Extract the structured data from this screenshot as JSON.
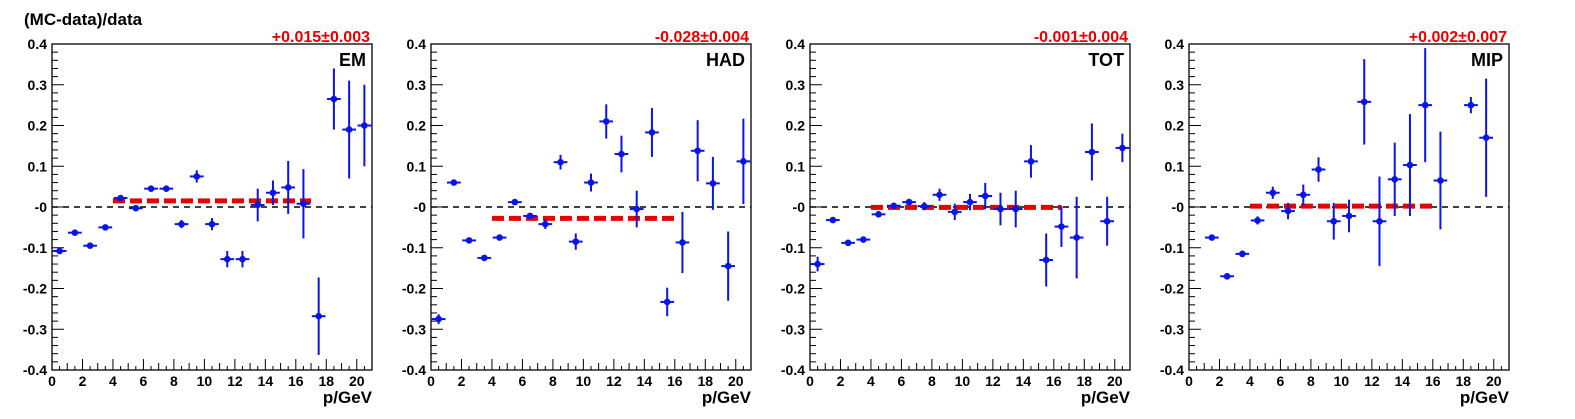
{
  "figure": {
    "ylabel": "(MC-data)/data",
    "xlabel": "p/GeV"
  },
  "colors": {
    "points": "#0a14e6",
    "fit": "#e60000",
    "zero": "#000000",
    "fit_text": "#e60000"
  },
  "chart_data": [
    {
      "type": "scatter",
      "name": "EM",
      "fit_label": "+0.015±0.003",
      "xlabel": "p/GeV",
      "ylabel": "(MC-data)/data",
      "xlim": [
        0,
        21
      ],
      "ylim": [
        -0.4,
        0.4
      ],
      "xticks": [
        0,
        2,
        4,
        6,
        8,
        10,
        12,
        14,
        16,
        18,
        20
      ],
      "yticks": [
        -0.4,
        -0.3,
        -0.2,
        -0.1,
        0,
        0.1,
        0.2,
        0.3,
        0.4
      ],
      "ytick_labels": [
        "-0.4",
        "-0.3",
        "-0.2",
        "-0.1",
        "-0",
        "0.1",
        "0.2",
        "0.3",
        "0.4"
      ],
      "fit": {
        "x1": 4,
        "x2": 17,
        "y": 0.015
      },
      "points": [
        {
          "x": 0.5,
          "y": -0.108,
          "err": 0.006
        },
        {
          "x": 1.5,
          "y": -0.063,
          "err": 0.005
        },
        {
          "x": 2.5,
          "y": -0.095,
          "err": 0.005
        },
        {
          "x": 3.5,
          "y": -0.05,
          "err": 0.004
        },
        {
          "x": 4.5,
          "y": 0.022,
          "err": 0.004
        },
        {
          "x": 5.5,
          "y": -0.003,
          "err": 0.004
        },
        {
          "x": 6.5,
          "y": 0.045,
          "err": 0.005
        },
        {
          "x": 7.5,
          "y": 0.045,
          "err": 0.007
        },
        {
          "x": 8.5,
          "y": -0.042,
          "err": 0.01
        },
        {
          "x": 9.5,
          "y": 0.075,
          "err": 0.015
        },
        {
          "x": 10.5,
          "y": -0.042,
          "err": 0.015
        },
        {
          "x": 11.5,
          "y": -0.128,
          "err": 0.02
        },
        {
          "x": 12.5,
          "y": -0.128,
          "err": 0.02
        },
        {
          "x": 13.5,
          "y": 0.005,
          "err": 0.04
        },
        {
          "x": 14.5,
          "y": 0.035,
          "err": 0.03
        },
        {
          "x": 15.5,
          "y": 0.048,
          "err": 0.065
        },
        {
          "x": 16.5,
          "y": 0.008,
          "err": 0.085
        },
        {
          "x": 17.5,
          "y": -0.268,
          "err": 0.095
        },
        {
          "x": 18.5,
          "y": 0.265,
          "err": 0.075
        },
        {
          "x": 19.5,
          "y": 0.19,
          "err": 0.12
        },
        {
          "x": 20.5,
          "y": 0.2,
          "err": 0.1
        }
      ]
    },
    {
      "type": "scatter",
      "name": "HAD",
      "fit_label": "-0.028±0.004",
      "xlabel": "p/GeV",
      "ylabel": "",
      "xlim": [
        0,
        21
      ],
      "ylim": [
        -0.4,
        0.4
      ],
      "xticks": [
        0,
        2,
        4,
        6,
        8,
        10,
        12,
        14,
        16,
        18,
        20
      ],
      "yticks": [
        -0.4,
        -0.3,
        -0.2,
        -0.1,
        0,
        0.1,
        0.2,
        0.3,
        0.4
      ],
      "ytick_labels": [
        "-0.4",
        "-0.3",
        "-0.2",
        "-0.1",
        "-0",
        "0.1",
        "0.2",
        "0.3",
        "0.4"
      ],
      "fit": {
        "x1": 4,
        "x2": 16,
        "y": -0.028
      },
      "points": [
        {
          "x": 0.5,
          "y": -0.275,
          "err": 0.012
        },
        {
          "x": 1.5,
          "y": 0.06,
          "err": 0.005
        },
        {
          "x": 2.5,
          "y": -0.082,
          "err": 0.005
        },
        {
          "x": 3.5,
          "y": -0.125,
          "err": 0.004
        },
        {
          "x": 4.5,
          "y": -0.075,
          "err": 0.004
        },
        {
          "x": 5.5,
          "y": 0.012,
          "err": 0.005
        },
        {
          "x": 6.5,
          "y": -0.022,
          "err": 0.006
        },
        {
          "x": 7.5,
          "y": -0.042,
          "err": 0.012
        },
        {
          "x": 8.5,
          "y": 0.11,
          "err": 0.018
        },
        {
          "x": 9.5,
          "y": -0.085,
          "err": 0.02
        },
        {
          "x": 10.5,
          "y": 0.06,
          "err": 0.022
        },
        {
          "x": 11.5,
          "y": 0.21,
          "err": 0.042
        },
        {
          "x": 12.5,
          "y": 0.13,
          "err": 0.045
        },
        {
          "x": 13.5,
          "y": -0.005,
          "err": 0.045
        },
        {
          "x": 14.5,
          "y": 0.183,
          "err": 0.06
        },
        {
          "x": 15.5,
          "y": -0.233,
          "err": 0.035
        },
        {
          "x": 16.5,
          "y": -0.087,
          "err": 0.075
        },
        {
          "x": 17.5,
          "y": 0.138,
          "err": 0.075
        },
        {
          "x": 18.5,
          "y": 0.058,
          "err": 0.065
        },
        {
          "x": 19.5,
          "y": -0.145,
          "err": 0.085
        },
        {
          "x": 20.5,
          "y": 0.112,
          "err": 0.105
        }
      ]
    },
    {
      "type": "scatter",
      "name": "TOT",
      "fit_label": "-0.001±0.004",
      "xlabel": "p/GeV",
      "ylabel": "",
      "xlim": [
        0,
        21
      ],
      "ylim": [
        -0.4,
        0.4
      ],
      "xticks": [
        0,
        2,
        4,
        6,
        8,
        10,
        12,
        14,
        16,
        18,
        20
      ],
      "yticks": [
        -0.4,
        -0.3,
        -0.2,
        -0.1,
        0,
        0.1,
        0.2,
        0.3,
        0.4
      ],
      "ytick_labels": [
        "-0.4",
        "-0.3",
        "-0.2",
        "-0.1",
        "-0",
        "0.1",
        "0.2",
        "0.3",
        "0.4"
      ],
      "fit": {
        "x1": 4,
        "x2": 16.5,
        "y": -0.001
      },
      "points": [
        {
          "x": 0.5,
          "y": -0.14,
          "err": 0.018
        },
        {
          "x": 1.5,
          "y": -0.032,
          "err": 0.005
        },
        {
          "x": 2.5,
          "y": -0.088,
          "err": 0.005
        },
        {
          "x": 3.5,
          "y": -0.08,
          "err": 0.005
        },
        {
          "x": 4.5,
          "y": -0.018,
          "err": 0.005
        },
        {
          "x": 5.5,
          "y": 0.003,
          "err": 0.005
        },
        {
          "x": 6.5,
          "y": 0.012,
          "err": 0.008
        },
        {
          "x": 7.5,
          "y": 0.002,
          "err": 0.01
        },
        {
          "x": 8.5,
          "y": 0.03,
          "err": 0.015
        },
        {
          "x": 9.5,
          "y": -0.012,
          "err": 0.02
        },
        {
          "x": 10.5,
          "y": 0.012,
          "err": 0.02
        },
        {
          "x": 11.5,
          "y": 0.027,
          "err": 0.032
        },
        {
          "x": 12.5,
          "y": -0.005,
          "err": 0.04
        },
        {
          "x": 13.5,
          "y": -0.005,
          "err": 0.045
        },
        {
          "x": 14.5,
          "y": 0.112,
          "err": 0.04
        },
        {
          "x": 15.5,
          "y": -0.13,
          "err": 0.065
        },
        {
          "x": 16.5,
          "y": -0.048,
          "err": 0.05
        },
        {
          "x": 17.5,
          "y": -0.075,
          "err": 0.1
        },
        {
          "x": 18.5,
          "y": 0.135,
          "err": 0.07
        },
        {
          "x": 19.5,
          "y": -0.035,
          "err": 0.06
        },
        {
          "x": 20.5,
          "y": 0.145,
          "err": 0.035
        }
      ]
    },
    {
      "type": "scatter",
      "name": "MIP",
      "fit_label": "+0.002±0.007",
      "xlabel": "p/GeV",
      "ylabel": "",
      "xlim": [
        0,
        21
      ],
      "ylim": [
        -0.4,
        0.4
      ],
      "xticks": [
        0,
        2,
        4,
        6,
        8,
        10,
        12,
        14,
        16,
        18,
        20
      ],
      "yticks": [
        -0.4,
        -0.3,
        -0.2,
        -0.1,
        0,
        0.1,
        0.2,
        0.3,
        0.4
      ],
      "ytick_labels": [
        "-0.4",
        "-0.3",
        "-0.2",
        "-0.1",
        "-0",
        "0.1",
        "0.2",
        "0.3",
        "0.4"
      ],
      "fit": {
        "x1": 4,
        "x2": 16,
        "y": 0.002
      },
      "points": [
        {
          "x": 1.5,
          "y": -0.075,
          "err": 0.006
        },
        {
          "x": 2.5,
          "y": -0.17,
          "err": 0.008
        },
        {
          "x": 3.5,
          "y": -0.115,
          "err": 0.008
        },
        {
          "x": 4.5,
          "y": -0.033,
          "err": 0.01
        },
        {
          "x": 5.5,
          "y": 0.035,
          "err": 0.015
        },
        {
          "x": 6.5,
          "y": -0.01,
          "err": 0.02
        },
        {
          "x": 7.5,
          "y": 0.03,
          "err": 0.025
        },
        {
          "x": 8.5,
          "y": 0.092,
          "err": 0.03
        },
        {
          "x": 9.5,
          "y": -0.035,
          "err": 0.045
        },
        {
          "x": 10.5,
          "y": -0.022,
          "err": 0.04
        },
        {
          "x": 11.5,
          "y": 0.258,
          "err": 0.105
        },
        {
          "x": 12.5,
          "y": -0.035,
          "err": 0.11
        },
        {
          "x": 13.5,
          "y": 0.068,
          "err": 0.09
        },
        {
          "x": 14.5,
          "y": 0.103,
          "err": 0.125
        },
        {
          "x": 15.5,
          "y": 0.25,
          "err": 0.14
        },
        {
          "x": 16.5,
          "y": 0.065,
          "err": 0.12
        },
        {
          "x": 18.5,
          "y": 0.25,
          "err": 0.02
        },
        {
          "x": 19.5,
          "y": 0.17,
          "err": 0.145
        }
      ]
    }
  ]
}
